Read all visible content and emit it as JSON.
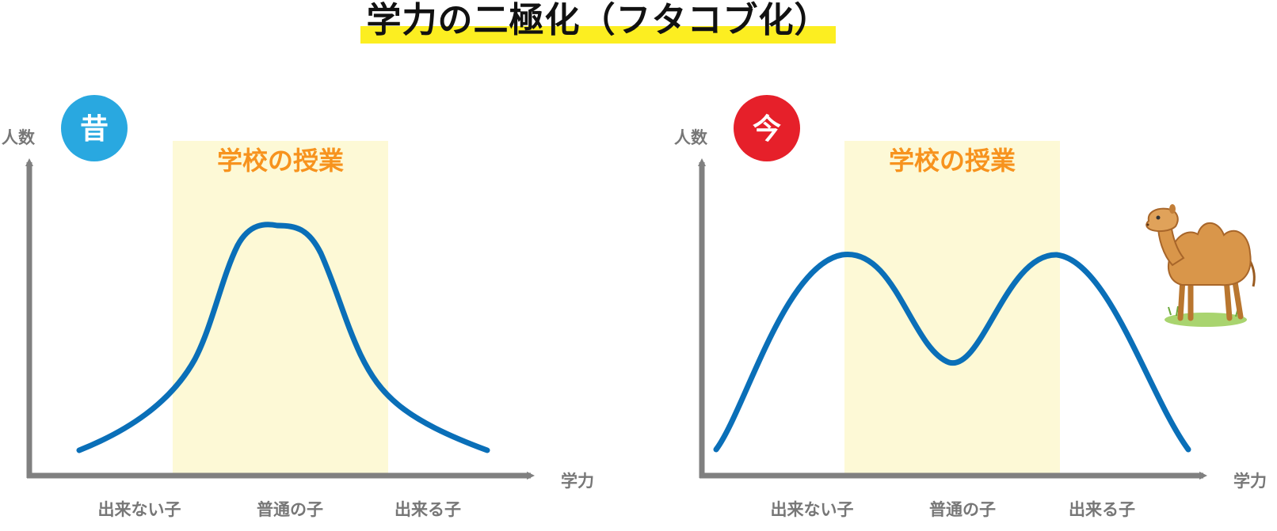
{
  "title": "学力の二極化（フタコブ化）",
  "colors": {
    "curve": "#0a6fb8",
    "axis": "#808080",
    "band": "#fdf9d6",
    "band_label": "#f7931e",
    "highlight": "#fcee21",
    "past_badge": "#29a8e0",
    "present_badge": "#e6202a"
  },
  "icons": [
    "camel-illustration"
  ],
  "panels": [
    {
      "badge": "昔",
      "y_label": "人数",
      "x_label": "学力",
      "band_label": "学校の授業",
      "categories": [
        "出来ない子",
        "普通の子",
        "出来る子"
      ],
      "shape": "single-peak"
    },
    {
      "badge": "今",
      "y_label": "人数",
      "x_label": "学力",
      "band_label": "学校の授業",
      "categories": [
        "出来ない子",
        "普通の子",
        "出来る子"
      ],
      "shape": "double-peak"
    }
  ]
}
